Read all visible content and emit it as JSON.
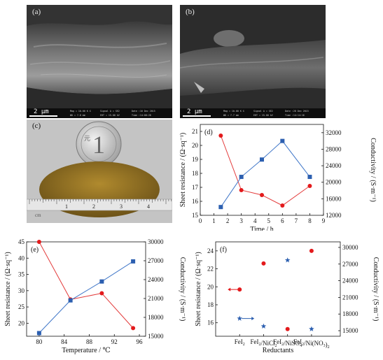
{
  "panels": {
    "a": {
      "label": "(a)",
      "scale": "2 μm",
      "info": {
        "mag": "Mag = 10.00 K X",
        "wd": "WD = 7.8 mm",
        "signal": "Signal A = SE2",
        "eht": "EHT = 15.00 kV",
        "date": "Date :16 Dec 2015",
        "time": "Time :14:08:28"
      }
    },
    "b": {
      "label": "(b)",
      "scale": "2 μm",
      "info": {
        "mag": "Mag = 10.00 K X",
        "wd": "WD = 7.7 mm",
        "signal": "Signal A = SE2",
        "eht": "EHT = 15.00 kV",
        "date": "Date :28 Dec 2015",
        "time": "Time :14:14:16"
      }
    },
    "c": {
      "label": "(c)",
      "ruler_numbers": [
        "1",
        "2",
        "3",
        "4"
      ],
      "ruler_unit": "cm",
      "coin_value": "1",
      "coin_text": "元"
    }
  },
  "colors": {
    "red": "#e31a1c",
    "blue": "#2c5fb0",
    "red_line": "#e33b3b",
    "blue_line": "#3f76c8"
  },
  "chart_data": [
    {
      "panel": "(d)",
      "type": "line",
      "xlabel": "Time / h",
      "ylabel_left": "Sheet resistance / (Ω·sq⁻¹)",
      "ylabel_right": "Conductivity / (S·m⁻¹)",
      "xlim": [
        0,
        9
      ],
      "xticks": [
        0,
        1,
        2,
        3,
        4,
        5,
        6,
        7,
        8,
        9
      ],
      "ylim_left": [
        15,
        21.5
      ],
      "yticks_left": [
        15,
        16,
        17,
        18,
        19,
        20,
        21
      ],
      "ylim_right": [
        12000,
        34000
      ],
      "yticks_right": [
        "12000",
        "16000",
        "20000",
        "24000",
        "28000",
        "32000"
      ],
      "series": [
        {
          "axis": "left",
          "color": "#e31a1c",
          "marker": "circle",
          "x": [
            1.5,
            3,
            4.5,
            6,
            8
          ],
          "y": [
            20.7,
            16.8,
            16.45,
            15.7,
            17.1
          ]
        },
        {
          "axis": "right",
          "color": "#2c5fb0",
          "marker": "square",
          "x": [
            1.5,
            3,
            4.5,
            6,
            8
          ],
          "y": [
            14000,
            21300,
            25500,
            30000,
            21300
          ]
        }
      ]
    },
    {
      "panel": "(e)",
      "type": "line",
      "xlabel": "Temperature / ℃",
      "ylabel_left": "Sheet resistance / (Ω·sq⁻¹)",
      "ylabel_right": "Conductivity / (S·m⁻¹)",
      "xlim": [
        78,
        97
      ],
      "xticks": [
        80,
        84,
        88,
        92,
        96
      ],
      "ylim_left": [
        16,
        45
      ],
      "yticks_left": [
        20,
        25,
        30,
        35,
        40,
        45
      ],
      "ylim_right": [
        15000,
        30000
      ],
      "yticks_right": [
        "15000",
        "18000",
        "21000",
        "24000",
        "27000",
        "30000"
      ],
      "series": [
        {
          "axis": "left",
          "color": "#e31a1c",
          "marker": "circle",
          "x": [
            80,
            85,
            90,
            95
          ],
          "y": [
            45,
            27.3,
            29.2,
            18.5
          ]
        },
        {
          "axis": "right",
          "color": "#2c5fb0",
          "marker": "square",
          "x": [
            80,
            85,
            90,
            95
          ],
          "y": [
            15500,
            20700,
            23700,
            26900
          ]
        }
      ]
    },
    {
      "panel": "(f)",
      "type": "scatter",
      "xlabel": "Reductants",
      "ylabel_left": "Sheet resistance / (Ω·sq⁻¹)",
      "ylabel_right": "Conductivity / (S·m⁻¹)",
      "categories": [
        "FeI2",
        "FeI2/NiCl2",
        "FeI2/NiSO4",
        "FeI2/Ni(NO3)2"
      ],
      "xlim": [
        0,
        5.2
      ],
      "ylim_left": [
        14.5,
        25
      ],
      "yticks_left": [
        16,
        18,
        20,
        22,
        24
      ],
      "ylim_right": [
        14000,
        31000
      ],
      "yticks_right": [
        "15000",
        "18000",
        "21000",
        "24000",
        "27000",
        "30000"
      ],
      "series": [
        {
          "axis": "left",
          "color": "#e31a1c",
          "marker": "circle",
          "x": [
            1,
            2,
            3,
            4
          ],
          "y": [
            19.7,
            22.6,
            15.3,
            24
          ]
        },
        {
          "axis": "right",
          "color": "#2c5fb0",
          "marker": "star",
          "x": [
            1,
            2,
            3,
            4
          ],
          "y": [
            17200,
            15800,
            27700,
            15300
          ]
        }
      ]
    }
  ]
}
